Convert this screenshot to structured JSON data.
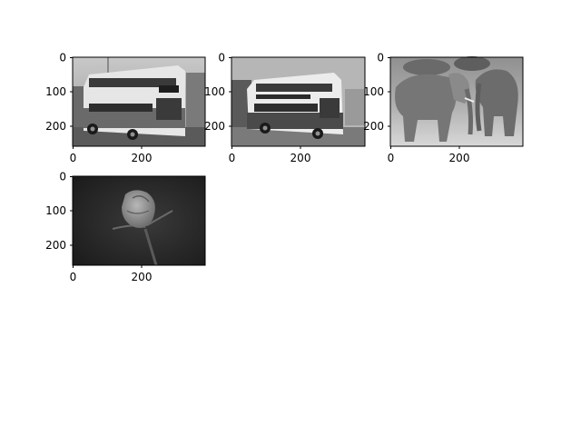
{
  "figure": {
    "background": "#ffffff",
    "panels": [
      {
        "subject": "double-decker bus (1)",
        "x_ticks": [
          "0",
          "200"
        ],
        "y_ticks": [
          "0",
          "100",
          "200"
        ]
      },
      {
        "subject": "double-decker bus (2)",
        "x_ticks": [
          "0",
          "200"
        ],
        "y_ticks": [
          "0",
          "100",
          "200"
        ]
      },
      {
        "subject": "elephants",
        "x_ticks": [
          "0",
          "200"
        ],
        "y_ticks": [
          "0",
          "100",
          "200"
        ]
      },
      {
        "subject": "rose",
        "x_ticks": [
          "0",
          "200"
        ],
        "y_ticks": [
          "0",
          "100",
          "200"
        ]
      }
    ]
  }
}
